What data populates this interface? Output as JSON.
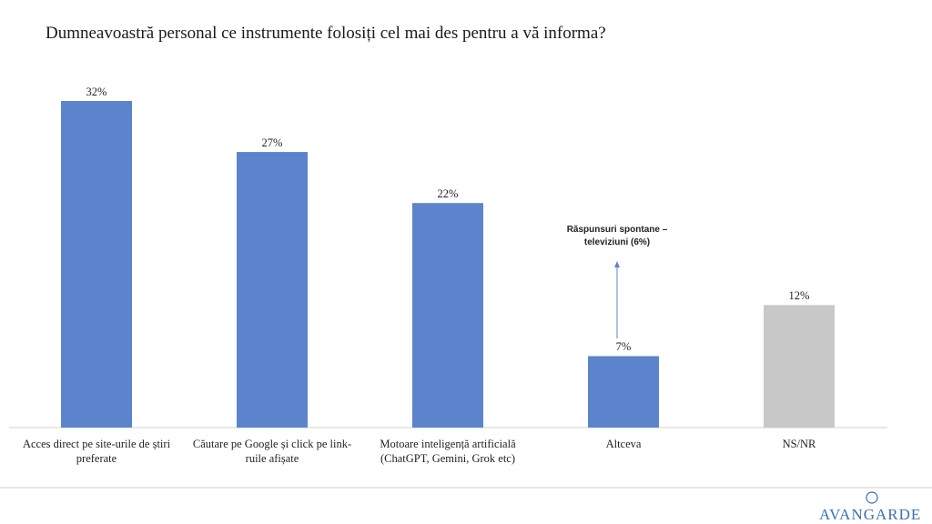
{
  "chart_data": {
    "type": "bar",
    "title": "Dumneavoastră personal ce instrumente folosiți cel mai des pentru a vă informa?",
    "categories": [
      "Acces direct pe site-urile de știri preferate",
      "Căutare pe Google și click pe link-ruile afișate",
      "Motoare inteligență artificială (ChatGPT, Gemini, Grok etc)",
      "Altceva",
      "NS/NR"
    ],
    "values": [
      32,
      27,
      22,
      7,
      12
    ],
    "value_labels": [
      "32%",
      "27%",
      "22%",
      "7%",
      "12%"
    ],
    "colors": [
      "#5b84cc",
      "#5b84cc",
      "#5b84cc",
      "#5b84cc",
      "#c8c8c8"
    ],
    "annotation": "Răspunsuri spontane – televiziuni (6%)",
    "logo": "AVANGARDE"
  }
}
